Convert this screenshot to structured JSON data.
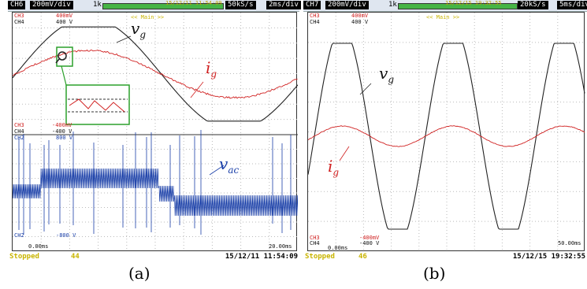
{
  "panel_a": {
    "channel": "CH6",
    "volts_div": "200mV/div",
    "one_k": "1k",
    "timestamp_top": "15/12/11 11:54:09",
    "sample_rate": "50kS/s",
    "time_div": "2ms/div",
    "main_label": "<< Main >>",
    "top_labels": [
      {
        "ch": "CH3",
        "val": "400mV"
      },
      {
        "ch": "CH4",
        "val": "400 V"
      }
    ],
    "mid_labels": [
      {
        "ch": "CH3",
        "val": "-400mV"
      },
      {
        "ch": "CH4",
        "val": "-400 V"
      },
      {
        "ch": "CH2",
        "val": "800 V"
      }
    ],
    "bottom_label": {
      "ch": "CH2",
      "val": "-800 V"
    },
    "offset": "0.00ms",
    "record": "20.00ms",
    "status": "Stopped",
    "count": "44",
    "timestamp": "15/12/11 11:54:09",
    "caption": "(a)",
    "label_vg": "v",
    "label_vg_sub": "g",
    "label_ig": "i",
    "label_ig_sub": "g",
    "label_vac": "v",
    "label_vac_sub": "ac"
  },
  "panel_b": {
    "channel": "CH7",
    "volts_div": "200mV/div",
    "one_k": "1k",
    "timestamp_top": "15/12/15 19:32:55",
    "sample_rate": "20kS/s",
    "time_div": "5ms/div",
    "main_label": "<< Main >>",
    "top_labels": [
      {
        "ch": "CH3",
        "val": "400mV"
      },
      {
        "ch": "CH4",
        "val": "400 V"
      }
    ],
    "bottom_labels": [
      {
        "ch": "CH3",
        "val": "-400mV"
      },
      {
        "ch": "CH4",
        "val": "-400 V"
      }
    ],
    "offset": "0.00ms",
    "record": "50.00ms",
    "status": "Stopped",
    "count": "46",
    "timestamp": "15/12/15 19:32:55",
    "caption": "(b)",
    "label_vg": "v",
    "label_vg_sub": "g",
    "label_ig": "i",
    "label_ig_sub": "g"
  },
  "colors": {
    "voltage": "#222222",
    "current": "#d02020",
    "vac": "#1a3fa8",
    "zoom_box": "#2ca02c"
  }
}
